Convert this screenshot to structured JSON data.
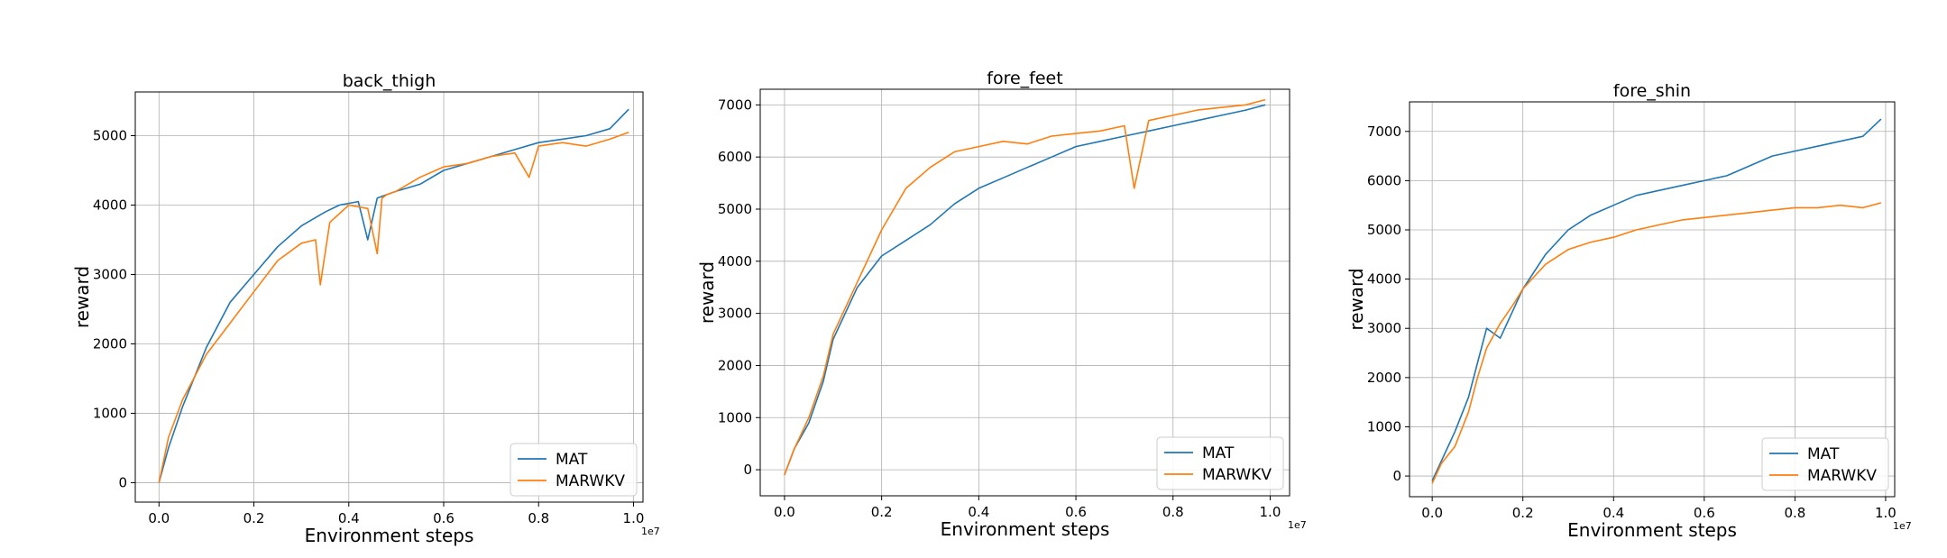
{
  "colors": {
    "MAT": "#1f77b4",
    "MARWKV": "#ff7f0e",
    "grid": "#b0b0b0"
  },
  "chart_data": [
    {
      "type": "line",
      "title": "back_thigh",
      "xlabel": "Environment steps",
      "ylabel": "reward",
      "x_exponent_label": "1e7",
      "xlim": [
        -0.05,
        1.02
      ],
      "ylim": [
        -280,
        5630
      ],
      "xticks": [
        0.0,
        0.2,
        0.4,
        0.6,
        0.8,
        1.0
      ],
      "xtick_labels": [
        "0.0",
        "0.2",
        "0.4",
        "0.6",
        "0.8",
        "1.0"
      ],
      "yticks": [
        0,
        1000,
        2000,
        3000,
        4000,
        5000
      ],
      "ytick_labels": [
        "0",
        "1000",
        "2000",
        "3000",
        "4000",
        "5000"
      ],
      "grid": true,
      "legend_position": "lower-right",
      "series": [
        {
          "name": "MAT",
          "x": [
            0.0,
            0.02,
            0.05,
            0.1,
            0.15,
            0.2,
            0.25,
            0.3,
            0.35,
            0.38,
            0.42,
            0.44,
            0.46,
            0.48,
            0.5,
            0.55,
            0.6,
            0.65,
            0.7,
            0.75,
            0.8,
            0.85,
            0.9,
            0.95,
            0.99
          ],
          "y": [
            0,
            500,
            1100,
            1950,
            2600,
            3000,
            3400,
            3700,
            3900,
            4000,
            4050,
            3500,
            4100,
            4150,
            4200,
            4300,
            4500,
            4600,
            4700,
            4800,
            4900,
            4950,
            5000,
            5100,
            5380
          ]
        },
        {
          "name": "MARWKV",
          "x": [
            0.0,
            0.02,
            0.05,
            0.1,
            0.15,
            0.2,
            0.25,
            0.3,
            0.33,
            0.34,
            0.36,
            0.4,
            0.44,
            0.46,
            0.47,
            0.48,
            0.5,
            0.55,
            0.6,
            0.65,
            0.7,
            0.75,
            0.78,
            0.8,
            0.85,
            0.9,
            0.95,
            0.99
          ],
          "y": [
            0,
            650,
            1200,
            1850,
            2300,
            2750,
            3200,
            3450,
            3500,
            2850,
            3750,
            4000,
            3950,
            3300,
            4100,
            4150,
            4200,
            4400,
            4550,
            4600,
            4700,
            4750,
            4400,
            4850,
            4900,
            4850,
            4950,
            5050
          ]
        }
      ]
    },
    {
      "type": "line",
      "title": "fore_feet",
      "xlabel": "Environment steps",
      "ylabel": "reward",
      "x_exponent_label": "1e7",
      "xlim": [
        -0.05,
        1.04
      ],
      "ylim": [
        -500,
        7300
      ],
      "xticks": [
        0.0,
        0.2,
        0.4,
        0.6,
        0.8,
        1.0
      ],
      "xtick_labels": [
        "0.0",
        "0.2",
        "0.4",
        "0.6",
        "0.8",
        "1.0"
      ],
      "yticks": [
        0,
        1000,
        2000,
        3000,
        4000,
        5000,
        6000,
        7000
      ],
      "ytick_labels": [
        "0",
        "1000",
        "2000",
        "3000",
        "4000",
        "5000",
        "6000",
        "7000"
      ],
      "grid": true,
      "legend_position": "lower-right",
      "series": [
        {
          "name": "MAT",
          "x": [
            0.0,
            0.02,
            0.05,
            0.08,
            0.1,
            0.15,
            0.2,
            0.25,
            0.3,
            0.35,
            0.4,
            0.45,
            0.5,
            0.55,
            0.6,
            0.65,
            0.7,
            0.75,
            0.8,
            0.85,
            0.9,
            0.95,
            0.99
          ],
          "y": [
            -100,
            400,
            900,
            1700,
            2500,
            3500,
            4100,
            4400,
            4700,
            5100,
            5400,
            5600,
            5800,
            6000,
            6200,
            6300,
            6400,
            6500,
            6600,
            6700,
            6800,
            6900,
            7000
          ]
        },
        {
          "name": "MARWKV",
          "x": [
            0.0,
            0.02,
            0.05,
            0.08,
            0.1,
            0.15,
            0.2,
            0.25,
            0.3,
            0.35,
            0.4,
            0.45,
            0.5,
            0.55,
            0.6,
            0.65,
            0.7,
            0.72,
            0.75,
            0.8,
            0.85,
            0.9,
            0.95,
            0.99
          ],
          "y": [
            -100,
            400,
            1000,
            1800,
            2600,
            3600,
            4600,
            5400,
            5800,
            6100,
            6200,
            6300,
            6250,
            6400,
            6450,
            6500,
            6600,
            5400,
            6700,
            6800,
            6900,
            6950,
            7000,
            7100
          ]
        }
      ]
    },
    {
      "type": "line",
      "title": "fore_shin",
      "xlabel": "Environment steps",
      "ylabel": "reward",
      "x_exponent_label": "1e7",
      "xlim": [
        -0.05,
        1.02
      ],
      "ylim": [
        -420,
        7600
      ],
      "xticks": [
        0.0,
        0.2,
        0.4,
        0.6,
        0.8,
        1.0
      ],
      "xtick_labels": [
        "0.0",
        "0.2",
        "0.4",
        "0.6",
        "0.8",
        "1.0"
      ],
      "yticks": [
        0,
        1000,
        2000,
        3000,
        4000,
        5000,
        6000,
        7000
      ],
      "ytick_labels": [
        "0",
        "1000",
        "2000",
        "3000",
        "4000",
        "5000",
        "6000",
        "7000"
      ],
      "grid": true,
      "legend_position": "lower-right",
      "series": [
        {
          "name": "MAT",
          "x": [
            0.0,
            0.02,
            0.05,
            0.08,
            0.1,
            0.12,
            0.15,
            0.18,
            0.2,
            0.25,
            0.3,
            0.35,
            0.4,
            0.45,
            0.5,
            0.55,
            0.6,
            0.65,
            0.7,
            0.75,
            0.8,
            0.85,
            0.9,
            0.95,
            0.99
          ],
          "y": [
            -100,
            300,
            900,
            1600,
            2300,
            3000,
            2800,
            3400,
            3800,
            4500,
            5000,
            5300,
            5500,
            5700,
            5800,
            5900,
            6000,
            6100,
            6300,
            6500,
            6600,
            6700,
            6800,
            6900,
            7250
          ]
        },
        {
          "name": "MARWKV",
          "x": [
            0.0,
            0.02,
            0.05,
            0.08,
            0.1,
            0.12,
            0.15,
            0.18,
            0.2,
            0.25,
            0.3,
            0.35,
            0.4,
            0.45,
            0.5,
            0.55,
            0.6,
            0.65,
            0.7,
            0.75,
            0.8,
            0.85,
            0.9,
            0.95,
            0.99
          ],
          "y": [
            -150,
            250,
            600,
            1300,
            2000,
            2600,
            3100,
            3500,
            3800,
            4300,
            4600,
            4750,
            4850,
            5000,
            5100,
            5200,
            5250,
            5300,
            5350,
            5400,
            5450,
            5450,
            5500,
            5450,
            5550
          ]
        }
      ]
    }
  ]
}
